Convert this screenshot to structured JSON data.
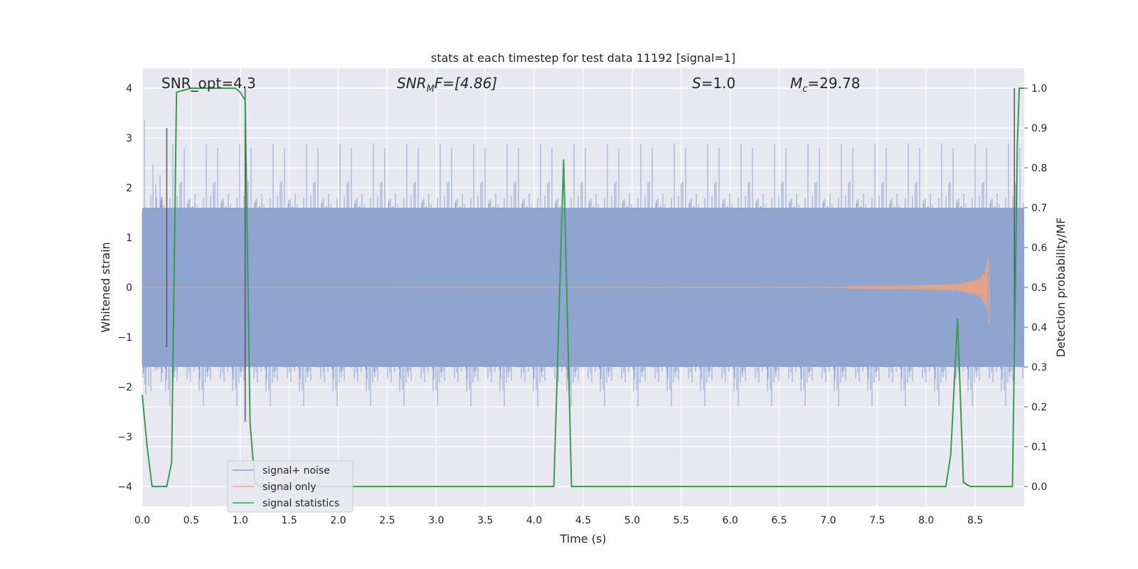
{
  "chart_data": {
    "type": "line",
    "title": "stats at each timestep for test data 11192 [signal=1]",
    "xlabel": "Time (s)",
    "ylabel": "Whitened strain",
    "ylabel_right": "Detection probability/MF",
    "xlim": [
      0.0,
      9.0
    ],
    "ylim": [
      -4.4,
      4.4
    ],
    "ylim_right": [
      -0.05,
      1.05
    ],
    "x_ticks": [
      "0.0",
      "0.5",
      "1.0",
      "1.5",
      "2.0",
      "2.5",
      "3.0",
      "3.5",
      "4.0",
      "4.5",
      "5.0",
      "5.5",
      "6.0",
      "6.5",
      "7.0",
      "7.5",
      "8.0",
      "8.5"
    ],
    "y_ticks": [
      "4",
      "3",
      "2",
      "1",
      "0",
      "−1",
      "−2",
      "−3",
      "−4"
    ],
    "y_ticks_right": [
      "1.0",
      "0.9",
      "0.8",
      "0.7",
      "0.6",
      "0.5",
      "0.4",
      "0.3",
      "0.2",
      "0.1",
      "0.0"
    ],
    "grid": true,
    "legend_position": "lower-left",
    "annotations": {
      "snr_opt": "SNR_opt=4.3",
      "snr_mf_italic": "SNR",
      "snr_mf_sub": "M",
      "snr_mf_tail": "F=[4.86]",
      "s_italic": "S",
      "s_tail": "=1.0",
      "mc_italic": "M",
      "mc_sub": "c",
      "mc_tail": "=29.78"
    },
    "series": [
      {
        "name": "signal+ noise",
        "color": "#8fa5d0",
        "style": "dense noise, envelope approx ±1.6 with spikes to ±3.6",
        "envelope_core": 1.6,
        "envelope_peak": 3.6
      },
      {
        "name": "signal only",
        "color": "#e3a28a",
        "style": "chirp ending near t=8.65 s with amplitude ~1.1",
        "chirp_end": 8.65,
        "chirp_peak_amplitude": 1.1
      },
      {
        "name": "signal statistics",
        "color": "#3a9a52",
        "axis": "right",
        "x": [
          0.0,
          0.05,
          0.1,
          0.25,
          0.3,
          0.35,
          0.5,
          0.8,
          0.95,
          1.0,
          1.05,
          1.1,
          1.15,
          1.2,
          1.3,
          2.0,
          3.0,
          4.0,
          4.2,
          4.3,
          4.38,
          4.5,
          5.0,
          6.0,
          7.0,
          8.0,
          8.2,
          8.25,
          8.32,
          8.38,
          8.45,
          8.5,
          8.8,
          8.88,
          8.93,
          8.95,
          9.0
        ],
        "values": [
          0.23,
          0.1,
          0.0,
          0.0,
          0.06,
          0.99,
          1.0,
          1.0,
          1.0,
          0.99,
          0.97,
          0.16,
          0.01,
          0.0,
          0.0,
          0.0,
          0.0,
          0.0,
          0.0,
          0.82,
          0.0,
          0.0,
          0.0,
          0.0,
          0.0,
          0.0,
          0.0,
          0.08,
          0.42,
          0.01,
          0.0,
          0.0,
          0.0,
          0.0,
          0.86,
          1.0,
          1.0
        ]
      }
    ],
    "vertical_markers": [
      {
        "x": 0.25,
        "bottom": -1.2,
        "top": 3.2,
        "color": "#555555"
      },
      {
        "x": 1.05,
        "bottom": -2.7,
        "top": 4.0,
        "color": "#555555"
      },
      {
        "x": 8.9,
        "bottom": -1.3,
        "top": 4.0,
        "color": "#555555"
      }
    ]
  }
}
